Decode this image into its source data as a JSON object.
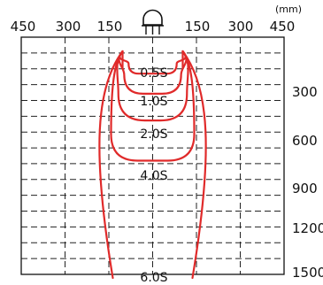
{
  "top_axis": {
    "unit": "(mm)",
    "ticks": [
      "450",
      "300",
      "150",
      "150",
      "300",
      "450"
    ]
  },
  "right_axis": {
    "ticks": [
      "300",
      "600",
      "900",
      "1200",
      "1500"
    ]
  },
  "sensor": {
    "icon": "sensor-icon"
  },
  "contours": [
    {
      "label": "0.5S",
      "half_width": 40,
      "depth": 150
    },
    {
      "label": "1.0S",
      "half_width": 55,
      "depth": 285
    },
    {
      "label": "2.0S",
      "half_width": 75,
      "depth": 465
    },
    {
      "label": "4.0S",
      "half_width": 100,
      "depth": 735
    },
    {
      "label": "6.0S",
      "half_width": 130,
      "depth": 1500
    }
  ],
  "colors": {
    "curve": "#e02a2a",
    "grid": "#222222"
  }
}
